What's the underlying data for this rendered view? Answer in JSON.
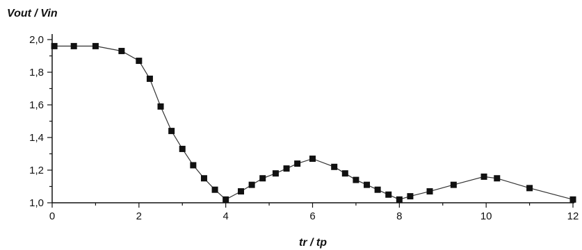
{
  "chart_data": {
    "type": "line",
    "xlabel": "tr / tp",
    "ylabel": "Vout / Vin",
    "xlim": [
      0,
      12
    ],
    "ylim": [
      1.0,
      2.0
    ],
    "x_ticks": [
      0,
      2,
      4,
      6,
      8,
      10,
      12
    ],
    "x_tick_labels": [
      "0",
      "2",
      "4",
      "6",
      "8",
      "10",
      "12"
    ],
    "y_ticks": [
      1.0,
      1.2,
      1.4,
      1.6,
      1.8,
      2.0
    ],
    "y_tick_labels": [
      "1,0",
      "1,2",
      "1,4",
      "1,6",
      "1,8",
      "2,0"
    ],
    "grid": false,
    "marker": "square",
    "colors": {
      "line": "#333333",
      "marker": "#111111",
      "axis": "#111111"
    },
    "series": [
      {
        "x": [
          0.05,
          0.5,
          1.0,
          1.6,
          2.0,
          2.25,
          2.5,
          2.75,
          3.0,
          3.25,
          3.5,
          3.75,
          4.0,
          4.35,
          4.6,
          4.85,
          5.15,
          5.4,
          5.65,
          6.0,
          6.5,
          6.75,
          7.0,
          7.25,
          7.5,
          7.75,
          8.0,
          8.25,
          8.7,
          9.25,
          9.95,
          10.25,
          11.0,
          12.0
        ],
        "y": [
          1.96,
          1.96,
          1.96,
          1.93,
          1.87,
          1.76,
          1.59,
          1.44,
          1.33,
          1.23,
          1.15,
          1.08,
          1.02,
          1.07,
          1.11,
          1.15,
          1.18,
          1.21,
          1.24,
          1.27,
          1.22,
          1.18,
          1.14,
          1.11,
          1.08,
          1.05,
          1.02,
          1.04,
          1.07,
          1.11,
          1.16,
          1.15,
          1.09,
          1.02
        ]
      }
    ]
  }
}
